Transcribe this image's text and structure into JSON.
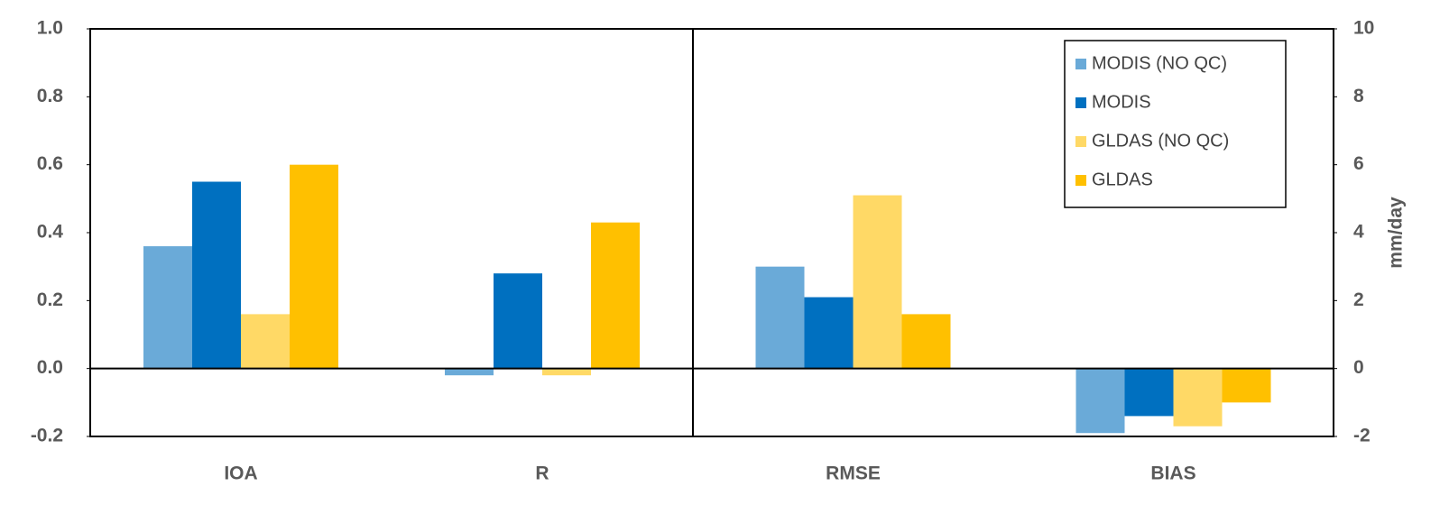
{
  "chart_data": {
    "type": "bar",
    "categories": [
      "IOA",
      "R",
      "RMSE",
      "BIAS"
    ],
    "category_axis": [
      "y",
      "y",
      "y2",
      "y2"
    ],
    "series": [
      {
        "name": "MODIS (NO QC)",
        "color": "#6aaad8",
        "values": [
          0.36,
          -0.02,
          3.0,
          -1.9
        ]
      },
      {
        "name": "MODIS",
        "color": "#0070c0",
        "values": [
          0.55,
          0.28,
          2.1,
          -1.4
        ]
      },
      {
        "name": "GLDAS (NO QC)",
        "color": "#ffd966",
        "values": [
          0.16,
          -0.02,
          5.1,
          -1.7
        ]
      },
      {
        "name": "GLDAS",
        "color": "#ffc000",
        "values": [
          0.6,
          0.43,
          1.6,
          -1.0
        ]
      }
    ],
    "ylim": [
      -0.2,
      1.0
    ],
    "yticks": [
      -0.2,
      {
        "value": 0,
        "label": "0.0"
      },
      0.2,
      0.4,
      0.6,
      0.8,
      {
        "value": 1,
        "label": "1.0"
      }
    ],
    "y2lim": [
      -2,
      10
    ],
    "y2ticks": [
      -2,
      0,
      2,
      4,
      6,
      8,
      10
    ],
    "y2label": "mm/day",
    "legend": "top-right"
  }
}
